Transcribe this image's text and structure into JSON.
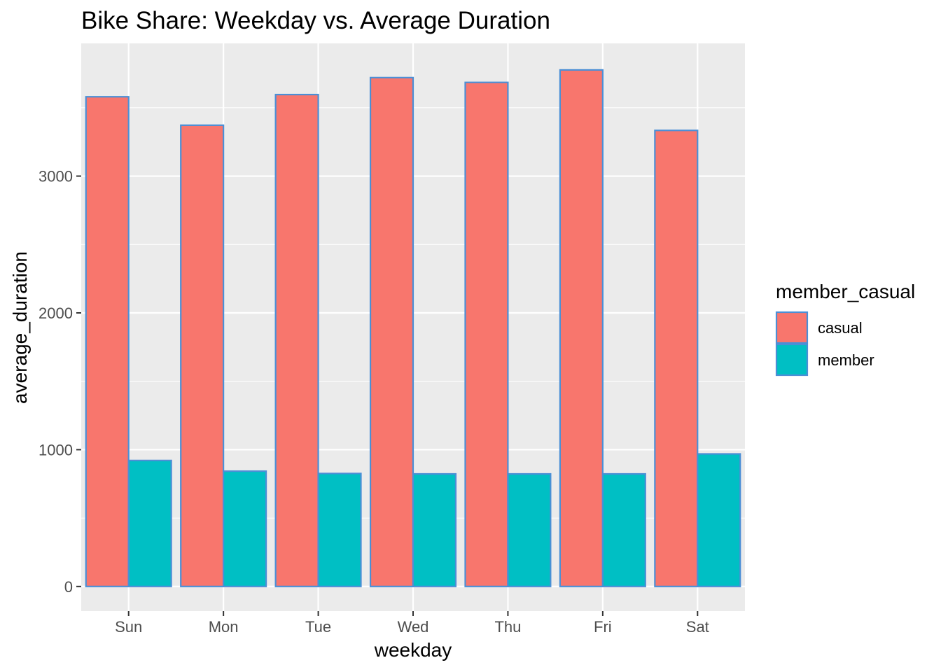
{
  "chart_data": {
    "type": "bar",
    "title": "Bike Share: Weekday vs. Average Duration",
    "xlabel": "weekday",
    "ylabel": "average_duration",
    "categories": [
      "Sun",
      "Mon",
      "Tue",
      "Wed",
      "Thu",
      "Fri",
      "Sat"
    ],
    "series": [
      {
        "name": "casual",
        "color": "#F8766D",
        "values": [
          3580,
          3372,
          3596,
          3720,
          3685,
          3776,
          3334
        ]
      },
      {
        "name": "member",
        "color": "#00BFC4",
        "values": [
          921,
          843,
          826,
          823,
          823,
          823,
          969
        ]
      }
    ],
    "bar_outline_color": "#4C8FD6",
    "ylim": [
      -180,
      3970
    ],
    "yticks": [
      0,
      1000,
      2000,
      3000
    ],
    "grid": true,
    "legend": {
      "title": "member_casual",
      "position": "right"
    },
    "panel_background": "#EBEBEB",
    "grid_color": "#FFFFFF"
  }
}
